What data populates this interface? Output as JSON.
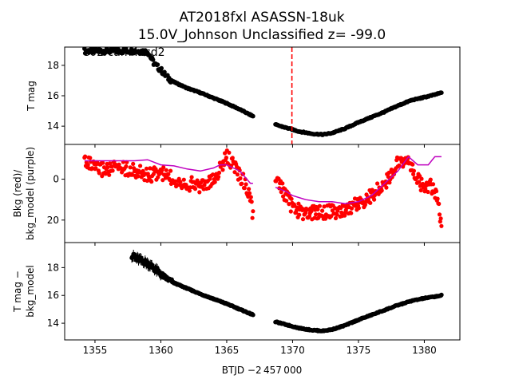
{
  "title_line1": "AT2018fxl  ASASSN-18uk",
  "title_line2": "15.0V_Johnson Unclassified z= -99.0",
  "sector_label": "s02 cam4ccd2",
  "xlabel": "BTJD −2 457 000",
  "colors": {
    "points": "#000000",
    "bkg": "#ff0000",
    "model": "#bf00bf",
    "marker": "#ff0000"
  },
  "chart_data": [
    {
      "type": "scatter",
      "panel": "top",
      "ylabel": "T mag",
      "xlim": [
        1352.7,
        1382.7
      ],
      "ylim": [
        19.2,
        12.8
      ],
      "y_inverted": true,
      "xticks": [
        1355,
        1360,
        1365,
        1370,
        1375,
        1380
      ],
      "yticks": [
        14,
        16,
        18
      ],
      "vline_x": 1369.95,
      "series": [
        {
          "x": [
            1354.2,
            1356,
            1358,
            1359,
            1359.5,
            1360,
            1360.5,
            1361,
            1361.5,
            1362,
            1363,
            1364,
            1365,
            1366,
            1367
          ],
          "y": [
            18.95,
            18.95,
            18.95,
            18.9,
            18.1,
            17.7,
            17.2,
            16.9,
            16.7,
            16.5,
            16.2,
            15.85,
            15.5,
            15.1,
            14.65
          ]
        },
        {
          "x": [
            1368.7,
            1369.5,
            1370.5,
            1371.5,
            1372.3,
            1373,
            1374,
            1375,
            1376,
            1377,
            1378,
            1379,
            1380,
            1380.7,
            1381.3
          ],
          "y": [
            14.1,
            13.9,
            13.65,
            13.5,
            13.45,
            13.55,
            13.85,
            14.25,
            14.6,
            14.95,
            15.35,
            15.7,
            15.9,
            16.05,
            16.2
          ]
        }
      ]
    },
    {
      "type": "scatter",
      "panel": "middle",
      "ylabel": "Bkg (red)/\nbkg_model (purple)",
      "xlim": [
        1352.7,
        1382.7
      ],
      "ylim": [
        -17,
        31
      ],
      "yticks": [
        0,
        20
      ],
      "series": [
        {
          "name": "Bkg (red)",
          "x": [
            1354.2,
            1355,
            1356,
            1357,
            1358,
            1359,
            1360,
            1361,
            1362,
            1363,
            1364,
            1364.5,
            1365,
            1365.5,
            1366,
            1366.5,
            1366.8,
            1367,
            1368.7,
            1369,
            1369.5,
            1370,
            1371,
            1372,
            1373,
            1374,
            1375,
            1376,
            1377,
            1378,
            1378.5,
            1379,
            1379.5,
            1380,
            1380.5,
            1381,
            1381.3
          ],
          "y": [
            -10,
            -5,
            -5,
            -6,
            -4,
            -2,
            -3,
            0,
            2,
            3,
            1,
            -5,
            -11,
            -7,
            -2,
            3,
            10,
            18,
            1,
            3,
            8,
            14,
            17,
            16,
            16,
            15,
            12,
            8,
            2,
            -8,
            -10,
            -6,
            0,
            5,
            3,
            10,
            25
          ]
        },
        {
          "name": "bkg_model (purple)",
          "x": [
            1354.2,
            1356,
            1358,
            1359,
            1360,
            1361,
            1362,
            1363,
            1364,
            1364.5,
            1365,
            1366,
            1366.8,
            1367,
            1368.7,
            1369.5,
            1370,
            1371,
            1372,
            1373,
            1374,
            1375,
            1376,
            1376.5,
            1377,
            1378,
            1378.8,
            1379.5,
            1380.3,
            1380.8,
            1381.3
          ],
          "y": [
            -9,
            -9,
            -9,
            -9.5,
            -7,
            -6.5,
            -5,
            -4,
            -5.5,
            -7,
            -7,
            -4,
            2,
            2,
            4,
            6,
            8,
            10,
            11,
            11,
            12,
            11,
            8,
            5,
            2,
            -4,
            -11,
            -7,
            -7,
            -11,
            -11
          ]
        }
      ]
    },
    {
      "type": "scatter",
      "panel": "bottom",
      "ylabel": "T mag −\nbkg_model",
      "xlim": [
        1352.7,
        1382.7
      ],
      "ylim": [
        19.8,
        12.8
      ],
      "y_inverted": true,
      "xticks": [
        1355,
        1360,
        1365,
        1370,
        1375,
        1380
      ],
      "yticks": [
        14,
        16,
        18
      ],
      "series": [
        {
          "x": [
            1357.8,
            1358.3,
            1358.8,
            1359.3,
            1359.8,
            1360.3,
            1361,
            1362,
            1363,
            1364,
            1365,
            1366,
            1367
          ],
          "y": [
            18.85,
            18.6,
            18.4,
            18.1,
            17.7,
            17.3,
            16.9,
            16.5,
            16.1,
            15.75,
            15.4,
            15.0,
            14.6
          ]
        },
        {
          "x": [
            1368.7,
            1369.5,
            1370.5,
            1371.5,
            1372.3,
            1373,
            1374,
            1375,
            1376,
            1377,
            1378,
            1379,
            1380,
            1380.7,
            1381.3
          ],
          "y": [
            14.1,
            13.9,
            13.65,
            13.5,
            13.45,
            13.55,
            13.85,
            14.25,
            14.6,
            14.95,
            15.3,
            15.6,
            15.8,
            15.9,
            16.0
          ]
        }
      ]
    }
  ]
}
